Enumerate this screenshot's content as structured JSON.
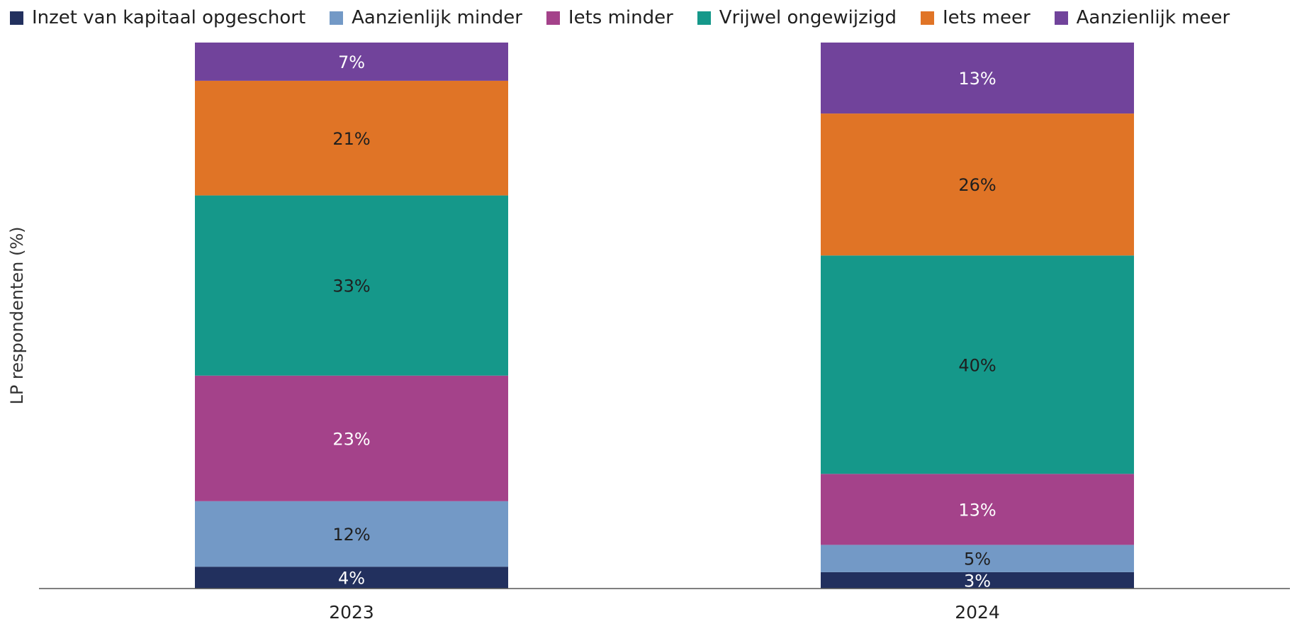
{
  "chart_data": {
    "type": "bar",
    "stacked": true,
    "categories": [
      "2023",
      "2024"
    ],
    "ylabel": "LP respondenten (%)",
    "xlabel": "",
    "ylim": [
      0,
      100
    ],
    "grid": false,
    "legend_position": "top",
    "series": [
      {
        "name": "Inzet van kapitaal opgeschort",
        "color": "#22305e",
        "label_color": "#ffffff",
        "values": [
          4,
          3
        ]
      },
      {
        "name": "Aanzienlijk minder",
        "color": "#7399c6",
        "label_color": "#1f1f1f",
        "values": [
          12,
          5
        ]
      },
      {
        "name": "Iets minder",
        "color": "#a4428a",
        "label_color": "#ffffff",
        "values": [
          23,
          13
        ]
      },
      {
        "name": "Vrijwel ongewijzigd",
        "color": "#15988a",
        "label_color": "#1f1f1f",
        "values": [
          33,
          40
        ]
      },
      {
        "name": "Iets meer",
        "color": "#e07426",
        "label_color": "#1f1f1f",
        "values": [
          21,
          26
        ]
      },
      {
        "name": "Aanzienlijk meer",
        "color": "#71439b",
        "label_color": "#ffffff",
        "values": [
          7,
          13
        ]
      }
    ],
    "data_labels": [
      [
        "4%",
        "3%"
      ],
      [
        "12%",
        "5%"
      ],
      [
        "23%",
        "13%"
      ],
      [
        "33%",
        "40%"
      ],
      [
        "21%",
        "26%"
      ],
      [
        "7%",
        "13%"
      ]
    ]
  }
}
